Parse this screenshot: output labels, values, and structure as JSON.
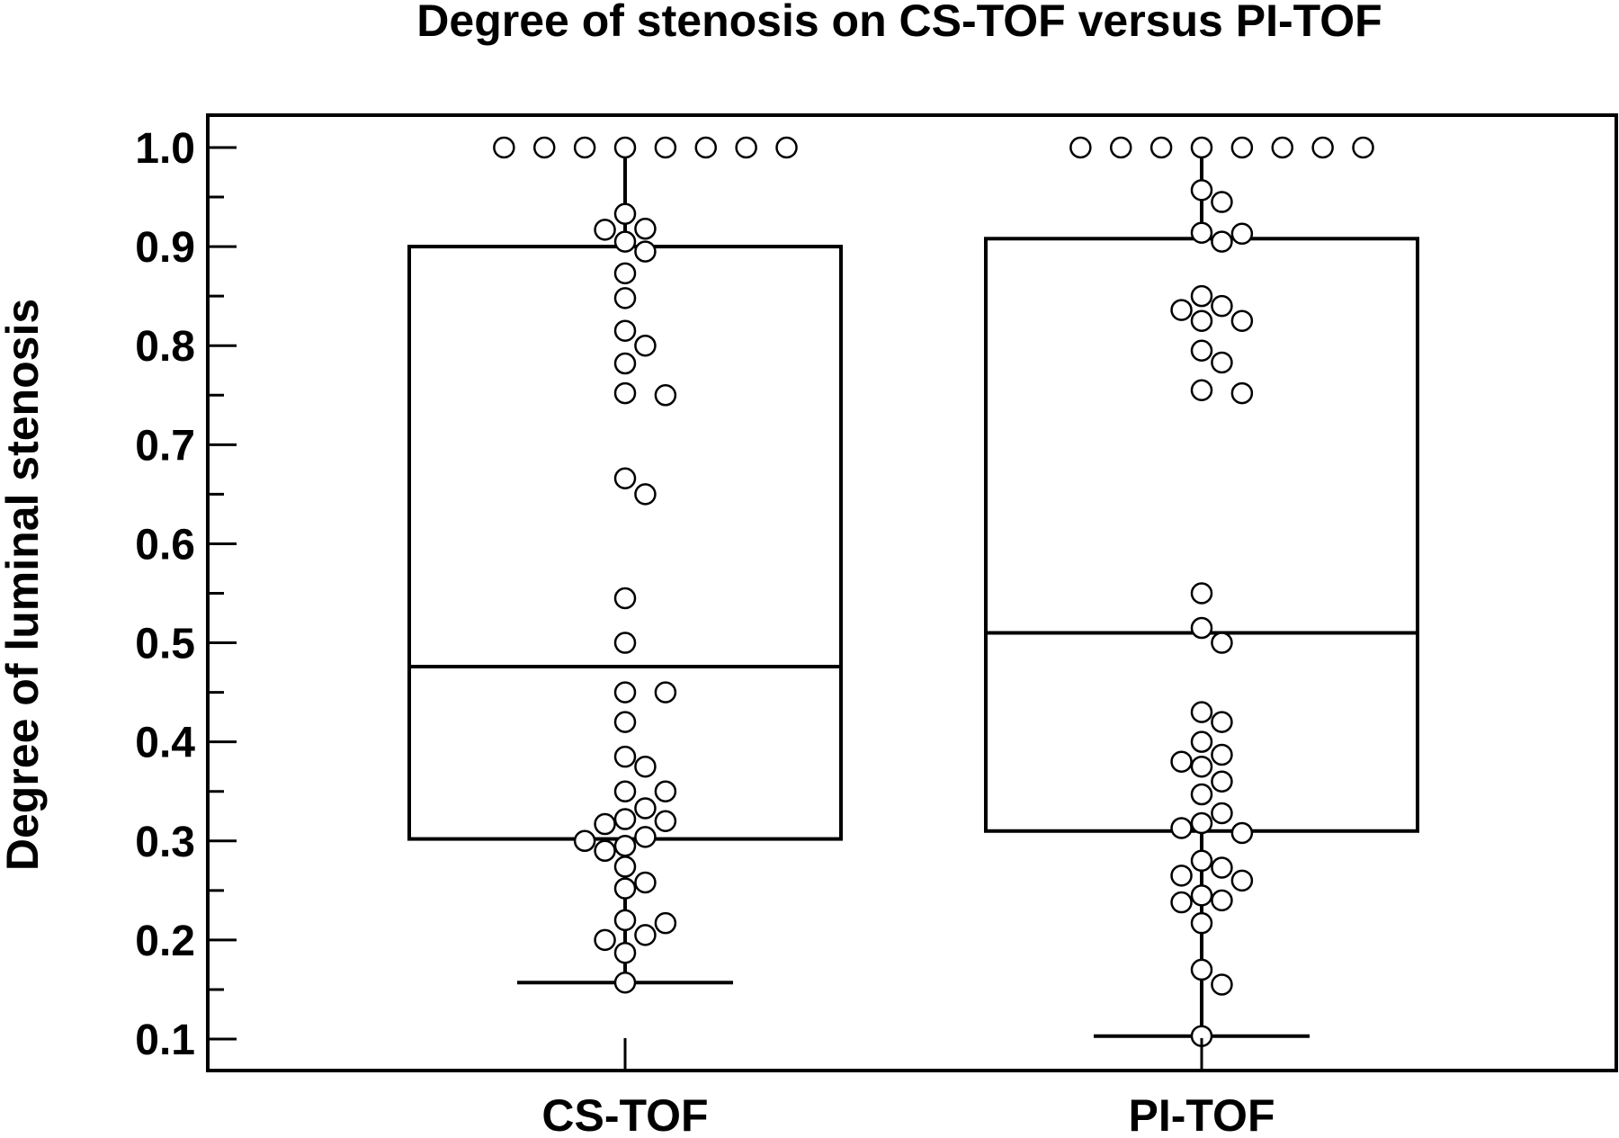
{
  "chart_data": {
    "type": "box",
    "title": "Degree of stenosis on CS-TOF versus PI-TOF",
    "xlabel": "",
    "ylabel": "Degree of luminal stenosis",
    "ylim": [
      0.07,
      1.033
    ],
    "yticks": [
      "0.1",
      "0.2",
      "0.3",
      "0.4",
      "0.5",
      "0.6",
      "0.7",
      "0.8",
      "0.9",
      "1.0"
    ],
    "yminor_ticks": [
      0.15,
      0.25,
      0.35,
      0.45,
      0.55,
      0.65,
      0.75,
      0.85,
      0.95
    ],
    "categories": [
      "CS-TOF",
      "PI-TOF"
    ],
    "grid": false,
    "boxes": [
      {
        "category": "CS-TOF",
        "q1": 0.302,
        "median": 0.476,
        "q3": 0.9,
        "whisker_low": 0.157,
        "whisker_high": 1.0,
        "points": [
          1.0,
          1.0,
          1.0,
          1.0,
          1.0,
          1.0,
          1.0,
          1.0,
          0.933,
          0.918,
          0.917,
          0.905,
          0.895,
          0.873,
          0.848,
          0.815,
          0.8,
          0.782,
          0.752,
          0.75,
          0.666,
          0.65,
          0.545,
          0.5,
          0.45,
          0.45,
          0.42,
          0.385,
          0.375,
          0.35,
          0.35,
          0.333,
          0.322,
          0.32,
          0.317,
          0.304,
          0.3,
          0.295,
          0.29,
          0.274,
          0.258,
          0.252,
          0.22,
          0.217,
          0.205,
          0.2,
          0.187,
          0.157
        ]
      },
      {
        "category": "PI-TOF",
        "q1": 0.31,
        "median": 0.51,
        "q3": 0.908,
        "whisker_low": 0.103,
        "whisker_high": 1.0,
        "points": [
          1.0,
          1.0,
          1.0,
          1.0,
          1.0,
          1.0,
          1.0,
          1.0,
          0.957,
          0.945,
          0.914,
          0.913,
          0.905,
          0.85,
          0.84,
          0.836,
          0.825,
          0.825,
          0.795,
          0.783,
          0.755,
          0.752,
          0.55,
          0.515,
          0.5,
          0.43,
          0.42,
          0.4,
          0.387,
          0.38,
          0.375,
          0.36,
          0.347,
          0.328,
          0.318,
          0.313,
          0.308,
          0.28,
          0.273,
          0.265,
          0.26,
          0.245,
          0.24,
          0.238,
          0.217,
          0.17,
          0.155,
          0.103
        ]
      }
    ]
  }
}
